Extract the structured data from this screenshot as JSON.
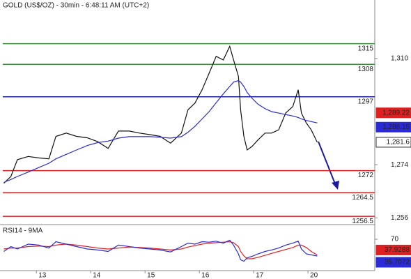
{
  "chart_data": [
    {
      "type": "line",
      "title": "GOLD (US$/OZ) - 30min - 6:48:11 AM (UTC+2)",
      "x": [
        -0.6,
        -0.47,
        -0.35,
        -0.15,
        0.04,
        0.23,
        0.36,
        0.55,
        0.74,
        0.94,
        1.13,
        1.32,
        1.51,
        1.71,
        1.9,
        2.09,
        2.28,
        2.47,
        2.67,
        2.79,
        2.92,
        3.05,
        3.18,
        3.31,
        3.44,
        3.56,
        3.63,
        3.72,
        3.76,
        3.82,
        3.88,
        3.97,
        4.08,
        4.21,
        4.33,
        4.46,
        4.59,
        4.72,
        4.82,
        4.88,
        4.97,
        5.06,
        5.17
      ],
      "series": [
        {
          "color": "#111111",
          "values": [
            1267.7,
            1270,
            1275.7,
            1276.8,
            1276.3,
            1276,
            1283.6,
            1284.7,
            1283.6,
            1283.1,
            1281.8,
            1279.5,
            1285.4,
            1285.4,
            1284.7,
            1284.2,
            1283.6,
            1281.3,
            1284.7,
            1292.6,
            1294.9,
            1299.4,
            1305,
            1310.7,
            1309.5,
            1314.1,
            1309.5,
            1303.9,
            1292.6,
            1283.6,
            1279,
            1280.2,
            1282.4,
            1284.7,
            1284.7,
            1285.8,
            1291.5,
            1293.7,
            1299.4,
            1291.5,
            1288.1,
            1285.8,
            1281.6
          ]
        },
        {
          "color": "#2a2ad8",
          "values": [
            1268,
            1269,
            1270,
            1271.5,
            1273,
            1274.5,
            1276,
            1277.5,
            1279,
            1280.5,
            1281.5,
            1282,
            1283,
            1283.5,
            1283.5,
            1283.5,
            1283.3,
            1283,
            1283.5,
            1285,
            1287,
            1289.5,
            1292,
            1295,
            1298,
            1300.5,
            1302,
            1302.5,
            1302,
            1300.5,
            1298.5,
            1296.5,
            1294.5,
            1293,
            1292,
            1291.5,
            1291,
            1290.5,
            1290,
            1289.5,
            1289,
            1288.6,
            1288.15
          ]
        }
      ],
      "xlim": [
        -0.67,
        6.23
      ],
      "xticks": [
        {
          "value": 0,
          "label": "13"
        },
        {
          "value": 1,
          "label": "14"
        },
        {
          "value": 2,
          "label": "15"
        },
        {
          "value": 3,
          "label": "16"
        },
        {
          "value": 4,
          "label": "17"
        },
        {
          "value": 5,
          "label": "20"
        }
      ],
      "ylim": [
        1253.7,
        1326.5
      ],
      "yticks": [
        {
          "value": 1310,
          "label": "1,310"
        },
        {
          "value": 1274,
          "label": "1,274"
        },
        {
          "value": 1256,
          "label": "1,256"
        }
      ],
      "levels": [
        {
          "value": 1315,
          "color": "#3a8a3a"
        },
        {
          "value": 1308,
          "color": "#3a8a3a"
        },
        {
          "value": 1297,
          "color": "#2020a0"
        },
        {
          "value": 1272,
          "color": "#e02020"
        },
        {
          "value": 1264.5,
          "color": "#e02020"
        },
        {
          "value": 1256.5,
          "color": "#e02020"
        }
      ],
      "markers": [
        {
          "value": 1289.22,
          "label": "1,289.22",
          "color": "#e02020"
        },
        {
          "value": 1288.15,
          "label": "1,288.15",
          "color": "#2a2ad8"
        },
        {
          "value": 1281.6,
          "label": "1,281.6",
          "color": "#ffffff"
        }
      ]
    },
    {
      "type": "line",
      "title": "RSI14 - 9MA",
      "series": [
        {
          "color": "#e02020",
          "values": [
            50,
            52,
            52,
            55,
            56,
            55,
            58,
            60,
            58,
            55,
            52,
            50,
            52,
            54,
            53,
            52,
            50,
            48,
            50,
            54,
            57,
            60,
            62,
            63,
            64,
            65,
            63,
            55,
            45,
            36,
            30,
            30,
            33,
            37,
            41,
            45,
            49,
            53,
            58,
            58,
            53,
            45,
            37.9
          ]
        },
        {
          "color": "#2a2ad8",
          "values": [
            45,
            55,
            50,
            60,
            58,
            52,
            65,
            60,
            55,
            50,
            48,
            45,
            58,
            55,
            52,
            50,
            48,
            44,
            55,
            62,
            60,
            65,
            64,
            66,
            62,
            68,
            58,
            40,
            28,
            25,
            32,
            35,
            40,
            45,
            48,
            52,
            58,
            62,
            66,
            50,
            40,
            38,
            35.7
          ]
        }
      ],
      "ylim": [
        0,
        100
      ],
      "yticks": [
        70
      ],
      "markers": [
        {
          "value": 37.9288,
          "color": "#e02020"
        },
        {
          "value": 35.7072,
          "color": "#2a2ad8"
        }
      ]
    }
  ]
}
